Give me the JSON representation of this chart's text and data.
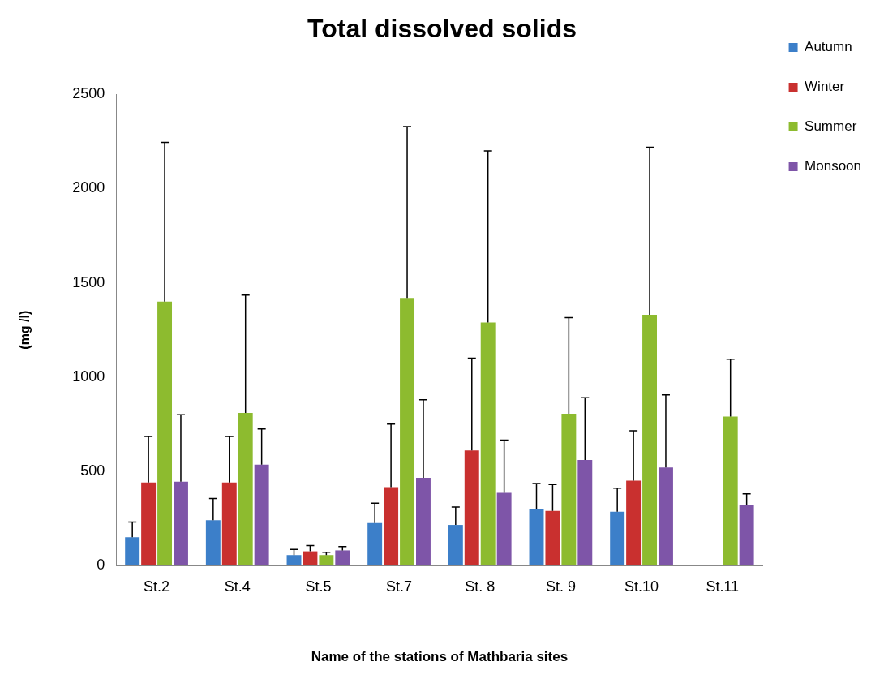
{
  "chart_data": {
    "type": "bar",
    "title": "Total dissolved solids",
    "xlabel": "Name of the stations of Mathbaria sites",
    "ylabel": "(mg /l)",
    "categories": [
      "St.2",
      "St.4",
      "St.5",
      "St.7",
      "St. 8",
      "St. 9",
      "St.10",
      "St.11"
    ],
    "series": [
      {
        "name": "Autumn",
        "color": "#3c7fc9",
        "values": [
          150,
          240,
          55,
          225,
          215,
          300,
          285,
          null
        ],
        "errors": [
          [
            150,
            230
          ],
          [
            240,
            355
          ],
          [
            55,
            85
          ],
          [
            225,
            330
          ],
          [
            215,
            310
          ],
          [
            300,
            435
          ],
          [
            285,
            410
          ],
          null
        ]
      },
      {
        "name": "Winter",
        "color": "#c9302f",
        "values": [
          440,
          440,
          75,
          415,
          610,
          290,
          450,
          null
        ],
        "errors": [
          [
            440,
            685
          ],
          [
            440,
            685
          ],
          [
            75,
            105
          ],
          [
            415,
            750
          ],
          [
            610,
            1100
          ],
          [
            290,
            430
          ],
          [
            450,
            715
          ],
          null
        ]
      },
      {
        "name": "Summer",
        "color": "#8dbb2f",
        "values": [
          1400,
          810,
          55,
          1420,
          1290,
          805,
          1330,
          790
        ],
        "errors": [
          [
            1400,
            2245
          ],
          [
            810,
            1435
          ],
          [
            55,
            70
          ],
          [
            1420,
            2330
          ],
          [
            1290,
            2200
          ],
          [
            805,
            1315
          ],
          [
            1330,
            2220
          ],
          [
            790,
            1095
          ]
        ]
      },
      {
        "name": "Monsoon",
        "color": "#7e55a8",
        "values": [
          445,
          535,
          80,
          465,
          385,
          560,
          520,
          320
        ],
        "errors": [
          [
            445,
            800
          ],
          [
            535,
            725
          ],
          [
            80,
            100
          ],
          [
            465,
            880
          ],
          [
            385,
            665
          ],
          [
            560,
            890
          ],
          [
            520,
            905
          ],
          [
            320,
            380
          ]
        ]
      }
    ],
    "ylim": [
      0,
      2500
    ],
    "yticks": [
      0,
      500,
      1000,
      1500,
      2000,
      2500
    ],
    "grid": false,
    "legend": "top right"
  }
}
